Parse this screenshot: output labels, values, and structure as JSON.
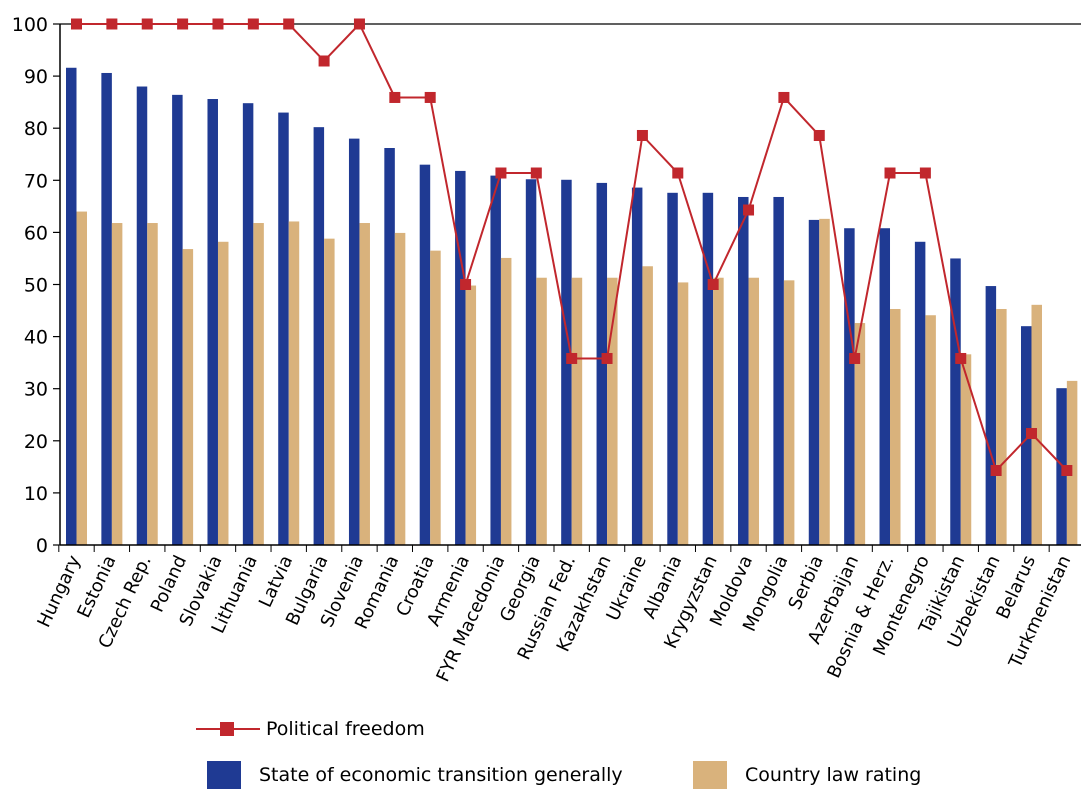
{
  "chart_data": {
    "type": "bar",
    "categories": [
      "Hungary",
      "Estonia",
      "Czech Rep.",
      "Poland",
      "Slovakia",
      "Lithuania",
      "Latvia",
      "Bulgaria",
      "Slovenia",
      "Romania",
      "Croatia",
      "Armenia",
      "FYR Macedonia",
      "Georgia",
      "Russian Fed.",
      "Kazakhstan",
      "Ukraine",
      "Albania",
      "Krygyzstan",
      "Moldova",
      "Mongolia",
      "Serbia",
      "Azerbaijan",
      "Bosnia & Herz.",
      "Montenegro",
      "Tajikistan",
      "Uzbekistan",
      "Belarus",
      "Turkmenistan"
    ],
    "series": [
      {
        "name": "State of economic transition generally",
        "kind": "bar",
        "color": "#1f3a93",
        "values": [
          91.6,
          90.6,
          88.0,
          86.4,
          85.6,
          84.8,
          83.0,
          80.2,
          78.0,
          76.2,
          73.0,
          71.8,
          70.9,
          70.2,
          70.1,
          69.5,
          68.6,
          67.6,
          67.6,
          66.8,
          66.8,
          62.4,
          60.8,
          60.8,
          58.2,
          55.0,
          49.7,
          42.0,
          30.1
        ]
      },
      {
        "name": "Country law rating",
        "kind": "bar",
        "color": "#d9b27c",
        "values": [
          64.0,
          61.8,
          61.8,
          56.8,
          58.2,
          61.8,
          62.1,
          58.8,
          61.8,
          59.9,
          56.5,
          49.8,
          55.1,
          51.3,
          51.3,
          51.3,
          53.5,
          50.4,
          51.3,
          51.3,
          50.8,
          62.6,
          42.6,
          45.3,
          44.1,
          36.6,
          45.3,
          46.1,
          31.5
        ]
      },
      {
        "name": "Political freedom",
        "kind": "line",
        "color": "#c1272d",
        "values": [
          100,
          100,
          100,
          100,
          100,
          100,
          100,
          92.9,
          100,
          85.9,
          85.9,
          50.0,
          71.4,
          71.4,
          35.8,
          35.8,
          78.6,
          71.4,
          50.0,
          64.3,
          85.9,
          78.6,
          35.8,
          71.4,
          71.4,
          35.8,
          14.3,
          21.4,
          14.3
        ]
      }
    ],
    "ylim": [
      0,
      100
    ],
    "yticks": [
      "0",
      "10",
      "20",
      "30",
      "40",
      "50",
      "60",
      "70",
      "80",
      "90",
      "100"
    ],
    "grid": false,
    "legend_position": "bottom"
  },
  "legend": {
    "political_freedom": "Political freedom",
    "economic_transition": "State of economic transition generally",
    "country_law": "Country law rating"
  },
  "colors": {
    "economic_transition": "#1f3a93",
    "country_law": "#d9b27c",
    "political_freedom": "#c1272d"
  }
}
